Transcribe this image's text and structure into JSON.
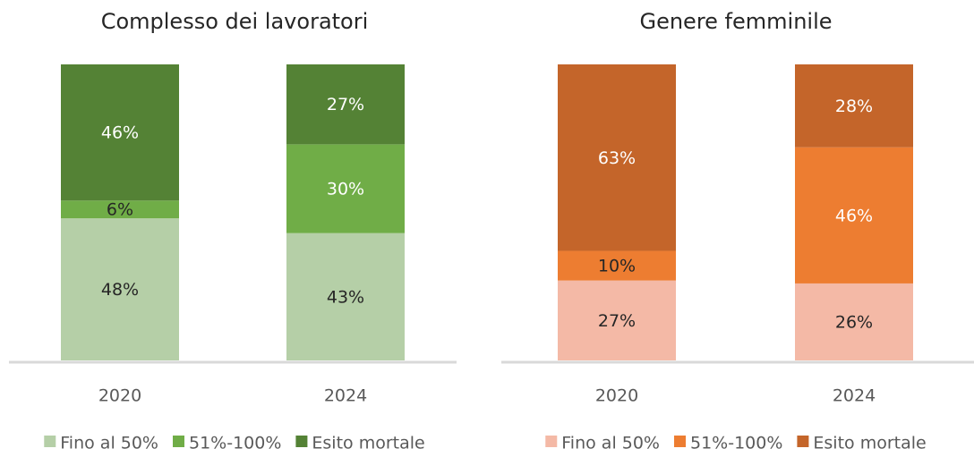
{
  "chart_data": [
    {
      "type": "stacked_bar",
      "title": "Complesso dei lavoratori",
      "categories": [
        "2020",
        "2024"
      ],
      "series": [
        {
          "name": "Fino al 50%",
          "color": "#b5cfa7",
          "values": [
            48,
            43
          ],
          "value_labels": [
            "48%",
            "43%"
          ]
        },
        {
          "name": "51%-100%",
          "color": "#70ad47",
          "values": [
            6,
            30
          ],
          "value_labels": [
            "6%",
            "30%"
          ]
        },
        {
          "name": "Esito mortale",
          "color": "#548235",
          "values": [
            46,
            27
          ],
          "value_labels": [
            "46%",
            "27%"
          ]
        }
      ]
    },
    {
      "type": "stacked_bar",
      "title": "Genere femminile",
      "categories": [
        "2020",
        "2024"
      ],
      "series": [
        {
          "name": "Fino al 50%",
          "color": "#f4b9a6",
          "values": [
            27,
            26
          ],
          "value_labels": [
            "27%",
            "26%"
          ]
        },
        {
          "name": "51%-100%",
          "color": "#ed7d31",
          "values": [
            10,
            46
          ],
          "value_labels": [
            "10%",
            "46%"
          ]
        },
        {
          "name": "Esito mortale",
          "color": "#c4652a",
          "values": [
            63,
            28
          ],
          "value_labels": [
            "63%",
            "28%"
          ]
        }
      ]
    }
  ]
}
